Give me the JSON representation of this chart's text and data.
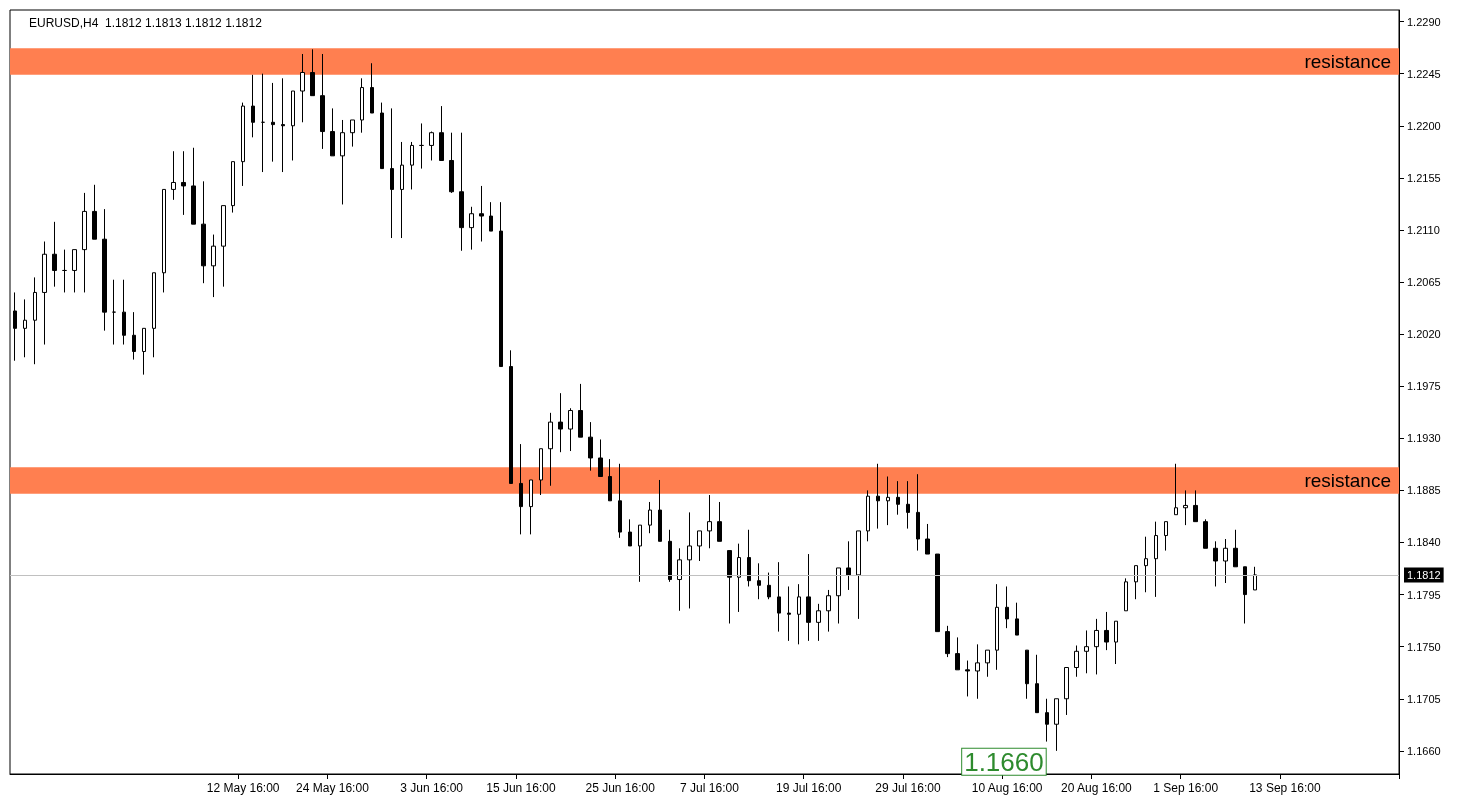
{
  "chart_data": {
    "type": "candlestick",
    "title": "EURUSD,H4  1.1812 1.1813 1.1812 1.1812",
    "color": "#000000",
    "categories": [
      null,
      null,
      null,
      null,
      null,
      null,
      null,
      null,
      null,
      null,
      null,
      null,
      null,
      null,
      null,
      null,
      null,
      null,
      null,
      null,
      null,
      null,
      null,
      "12 May 16:00",
      null,
      null,
      null,
      null,
      null,
      null,
      null,
      null,
      "24 May 16:00",
      null,
      null,
      null,
      null,
      null,
      null,
      null,
      null,
      null,
      "3 Jun 16:00",
      null,
      null,
      null,
      null,
      null,
      null,
      null,
      null,
      "15 Jun 16:00",
      null,
      null,
      null,
      null,
      null,
      null,
      null,
      null,
      null,
      "25 Jun 16:00",
      null,
      null,
      null,
      null,
      null,
      null,
      null,
      null,
      "7 Jul 16:00",
      null,
      null,
      null,
      null,
      null,
      null,
      null,
      null,
      null,
      "19 Jul 16:00",
      null,
      null,
      null,
      null,
      null,
      null,
      null,
      null,
      null,
      "29 Jul 16:00",
      null,
      null,
      null,
      null,
      null,
      null,
      null,
      null,
      null,
      "10 Aug 16:00",
      null,
      null,
      null,
      null,
      null,
      null,
      null,
      null,
      "20 Aug 16:00",
      null,
      null,
      null,
      null,
      null,
      null,
      null,
      null,
      "1 Sep 16:00",
      null,
      null,
      null,
      null,
      null,
      null,
      null,
      null,
      null,
      "13 Sep 16:00",
      null,
      null,
      null,
      null,
      null,
      null,
      null,
      null,
      null,
      null,
      null
    ],
    "ohlc": [
      [
        1.204,
        1.2056,
        1.1997,
        1.2025
      ],
      [
        1.2025,
        1.205,
        1.2,
        1.2032
      ],
      [
        1.2032,
        1.2069,
        1.1994,
        1.2056
      ],
      [
        1.2056,
        1.21,
        1.2011,
        1.2089
      ],
      [
        1.2089,
        1.2117,
        1.2061,
        1.2075
      ],
      [
        1.2075,
        1.2093,
        1.2056,
        1.2075
      ],
      [
        1.2075,
        1.2093,
        1.2056,
        1.2093
      ],
      [
        1.2093,
        1.2142,
        1.2056,
        1.2126
      ],
      [
        1.2126,
        1.2149,
        1.2102,
        1.2102
      ],
      [
        1.2102,
        1.2128,
        1.2023,
        1.2039
      ],
      [
        1.2039,
        1.2067,
        1.2011,
        1.2039
      ],
      [
        1.2039,
        1.2067,
        1.2011,
        1.2019
      ],
      [
        1.2019,
        1.2039,
        1.1998,
        1.2005
      ],
      [
        1.2005,
        1.2025,
        1.1985,
        1.2025
      ],
      [
        1.2025,
        1.2073,
        1.2,
        1.2073
      ],
      [
        1.2073,
        1.2145,
        1.2056,
        1.2145
      ],
      [
        1.2145,
        1.2178,
        1.2136,
        1.2151
      ],
      [
        1.2151,
        1.2178,
        1.2123,
        1.2148
      ],
      [
        1.2148,
        1.2181,
        1.2115,
        1.2115
      ],
      [
        1.2115,
        1.2152,
        1.2064,
        1.2079
      ],
      [
        1.2079,
        1.2106,
        1.2052,
        1.2096
      ],
      [
        1.2096,
        1.2131,
        1.2061,
        1.2131
      ],
      [
        1.2131,
        1.2169,
        1.2125,
        1.2169
      ],
      [
        1.2169,
        1.222,
        1.2148,
        1.2217
      ],
      [
        1.2217,
        1.2244,
        1.219,
        1.2203
      ],
      [
        1.2203,
        1.2245,
        1.216,
        1.2203
      ],
      [
        1.2203,
        1.2237,
        1.2169,
        1.2201
      ],
      [
        1.2201,
        1.2241,
        1.216,
        1.22
      ],
      [
        1.22,
        1.223,
        1.217,
        1.223
      ],
      [
        1.223,
        1.2262,
        1.2203,
        1.2246
      ],
      [
        1.2246,
        1.2266,
        1.2226,
        1.2226
      ],
      [
        1.2226,
        1.2262,
        1.218,
        1.2195
      ],
      [
        1.2195,
        1.2215,
        1.2174,
        1.2174
      ],
      [
        1.2174,
        1.2205,
        1.2132,
        1.2194
      ],
      [
        1.2194,
        1.2205,
        1.2182,
        1.2205
      ],
      [
        1.2205,
        1.2241,
        1.2194,
        1.2233
      ],
      [
        1.2233,
        1.2254,
        1.2211,
        1.2211
      ],
      [
        1.2211,
        1.222,
        1.2163,
        1.2163
      ],
      [
        1.2163,
        1.2215,
        1.2103,
        1.2145
      ],
      [
        1.2145,
        1.2186,
        1.2103,
        1.2166
      ],
      [
        1.2166,
        1.2186,
        1.2145,
        1.2183
      ],
      [
        1.2183,
        1.2202,
        1.2163,
        1.2183
      ],
      [
        1.2183,
        1.2195,
        1.217,
        1.2194
      ],
      [
        1.2194,
        1.2217,
        1.217,
        1.217
      ],
      [
        1.217,
        1.2194,
        1.2142,
        1.2143
      ],
      [
        1.2143,
        1.2194,
        1.2092,
        1.2112
      ],
      [
        1.2112,
        1.213,
        1.2093,
        1.2124
      ],
      [
        1.2124,
        1.2148,
        1.21,
        1.2122
      ],
      [
        1.2122,
        1.2134,
        1.2109,
        1.2109
      ],
      [
        1.2109,
        1.2134,
        1.1992,
        1.1992
      ],
      [
        1.1992,
        1.2006,
        1.1891,
        1.1891
      ],
      [
        1.1891,
        1.1925,
        1.1847,
        1.1871
      ],
      [
        1.1871,
        1.1894,
        1.1847,
        1.1894
      ],
      [
        1.1894,
        1.1921,
        1.1881,
        1.1921
      ],
      [
        1.1921,
        1.1952,
        1.1889,
        1.1944
      ],
      [
        1.1944,
        1.1969,
        1.1918,
        1.1938
      ],
      [
        1.1938,
        1.1956,
        1.1919,
        1.1954
      ],
      [
        1.1954,
        1.1977,
        1.1931,
        1.1931
      ],
      [
        1.1931,
        1.1944,
        1.1902,
        1.1913
      ],
      [
        1.1913,
        1.1929,
        1.1897,
        1.1897
      ],
      [
        1.1897,
        1.1912,
        1.1876,
        1.1876
      ],
      [
        1.1876,
        1.1908,
        1.1844,
        1.1849
      ],
      [
        1.1849,
        1.186,
        1.1837,
        1.1837
      ],
      [
        1.1837,
        1.1855,
        1.1806,
        1.1855
      ],
      [
        1.1855,
        1.1875,
        1.1848,
        1.1868
      ],
      [
        1.1868,
        1.1894,
        1.1841,
        1.1841
      ],
      [
        1.1841,
        1.1851,
        1.1806,
        1.1808
      ],
      [
        1.1808,
        1.1835,
        1.1781,
        1.1825
      ],
      [
        1.1825,
        1.1866,
        1.1783,
        1.1837
      ],
      [
        1.1837,
        1.185,
        1.1824,
        1.185
      ],
      [
        1.185,
        1.1881,
        1.1835,
        1.1858
      ],
      [
        1.1858,
        1.1875,
        1.1841,
        1.1841
      ],
      [
        1.1833,
        1.1833,
        1.177,
        1.181
      ],
      [
        1.181,
        1.1839,
        1.178,
        1.1827
      ],
      [
        1.1827,
        1.1851,
        1.1802,
        1.1807
      ],
      [
        1.1807,
        1.1822,
        1.1791,
        1.1803
      ],
      [
        1.1803,
        1.1814,
        1.1791,
        1.1793
      ],
      [
        1.1793,
        1.1823,
        1.1763,
        1.1779
      ],
      [
        1.1779,
        1.1802,
        1.1755,
        1.1778
      ],
      [
        1.1778,
        1.1804,
        1.1752,
        1.1793
      ],
      [
        1.1793,
        1.183,
        1.1755,
        1.1771
      ],
      [
        1.1771,
        1.1787,
        1.1755,
        1.1781
      ],
      [
        1.1781,
        1.1799,
        1.1763,
        1.1794
      ],
      [
        1.1794,
        1.1818,
        1.177,
        1.1818
      ],
      [
        1.1818,
        1.1841,
        1.1799,
        1.1812
      ],
      [
        1.1812,
        1.185,
        1.1774,
        1.185
      ],
      [
        1.185,
        1.1885,
        1.1841,
        1.188
      ],
      [
        1.188,
        1.1908,
        1.1852,
        1.1876
      ],
      [
        1.1876,
        1.1897,
        1.1855,
        1.1879
      ],
      [
        1.1879,
        1.1893,
        1.1864,
        1.1873
      ],
      [
        1.1873,
        1.1893,
        1.1852,
        1.1866
      ],
      [
        1.1866,
        1.1899,
        1.1833,
        1.1843
      ],
      [
        1.1843,
        1.1856,
        1.183,
        1.183
      ],
      [
        1.183,
        1.183,
        1.1763,
        1.1763
      ],
      [
        1.1763,
        1.1768,
        1.1741,
        1.1744
      ],
      [
        1.1744,
        1.1758,
        1.173,
        1.173
      ],
      [
        1.173,
        1.1738,
        1.1707,
        1.1729
      ],
      [
        1.1729,
        1.1752,
        1.1705,
        1.1736
      ],
      [
        1.1736,
        1.1747,
        1.1724,
        1.1747
      ],
      [
        1.1747,
        1.1804,
        1.173,
        1.1784
      ],
      [
        1.1784,
        1.1802,
        1.1766,
        1.1774
      ],
      [
        1.1774,
        1.1788,
        1.176,
        1.176
      ],
      [
        1.1747,
        1.1747,
        1.1705,
        1.1718
      ],
      [
        1.1718,
        1.1743,
        1.1693,
        1.1693
      ],
      [
        1.1693,
        1.1705,
        1.1668,
        1.1683
      ],
      [
        1.1683,
        1.1705,
        1.166,
        1.1705
      ],
      [
        1.1705,
        1.1732,
        1.1691,
        1.1732
      ],
      [
        1.1732,
        1.1751,
        1.1724,
        1.1746
      ],
      [
        1.1746,
        1.1764,
        1.1727,
        1.175
      ],
      [
        1.175,
        1.1774,
        1.1726,
        1.1764
      ],
      [
        1.1764,
        1.178,
        1.1747,
        1.1754
      ],
      [
        1.1754,
        1.1772,
        1.1735,
        1.1772
      ],
      [
        1.1781,
        1.1809,
        1.1781,
        1.1806
      ],
      [
        1.1806,
        1.182,
        1.1791,
        1.182
      ],
      [
        1.182,
        1.1845,
        1.1797,
        1.1826
      ],
      [
        1.1826,
        1.1858,
        1.1793,
        1.1846
      ],
      [
        1.1846,
        1.1858,
        1.1833,
        1.1858
      ],
      [
        1.1864,
        1.1908,
        1.1864,
        1.187
      ],
      [
        1.187,
        1.1885,
        1.1855,
        1.1872
      ],
      [
        1.1872,
        1.1885,
        1.1858,
        1.1858
      ],
      [
        1.1858,
        1.186,
        1.1835,
        1.1835
      ],
      [
        1.1835,
        1.1841,
        1.1802,
        1.1824
      ],
      [
        1.1824,
        1.1843,
        1.1805,
        1.1835
      ],
      [
        1.1835,
        1.1851,
        1.1819,
        1.1819
      ],
      [
        1.1819,
        1.1819,
        1.177,
        1.1795
      ],
      [
        1.1799,
        1.1819,
        1.1799,
        1.1812
      ],
      null,
      null,
      null,
      null,
      null,
      null,
      null,
      null,
      null,
      null,
      null,
      null,
      null,
      null
    ],
    "ylim": [
      1.164,
      1.23
    ],
    "yticks": [
      {
        "value": 1.166,
        "label": "1.1660"
      },
      1.1705,
      {
        "value": 1.175,
        "label": "1.1750"
      },
      1.1795,
      {
        "value": 1.184,
        "label": "1.1840"
      },
      1.1885,
      {
        "value": 1.193,
        "label": "1.1930"
      },
      1.1975,
      {
        "value": 1.202,
        "label": "1.2020"
      },
      1.2065,
      {
        "value": 1.211,
        "label": "1.2110"
      },
      1.2155,
      {
        "value": 1.22,
        "label": "1.2200"
      },
      1.2245,
      {
        "value": 1.229,
        "label": "1.2290"
      }
    ],
    "bands": [
      {
        "axis": "y",
        "from": 1.2244,
        "to": 1.2267,
        "label": "resistance",
        "color": "#ff7f50"
      },
      {
        "axis": "y",
        "from": 1.1882,
        "to": 1.1905,
        "label": "resistance",
        "color": "#ff7f50"
      }
    ],
    "ref_lines": [
      {
        "axis": "y",
        "value": 1.1812,
        "label": "1.1812",
        "color": "#c0c0c0",
        "line_style": "solid"
      }
    ],
    "annotations": [
      "1.1660"
    ]
  }
}
